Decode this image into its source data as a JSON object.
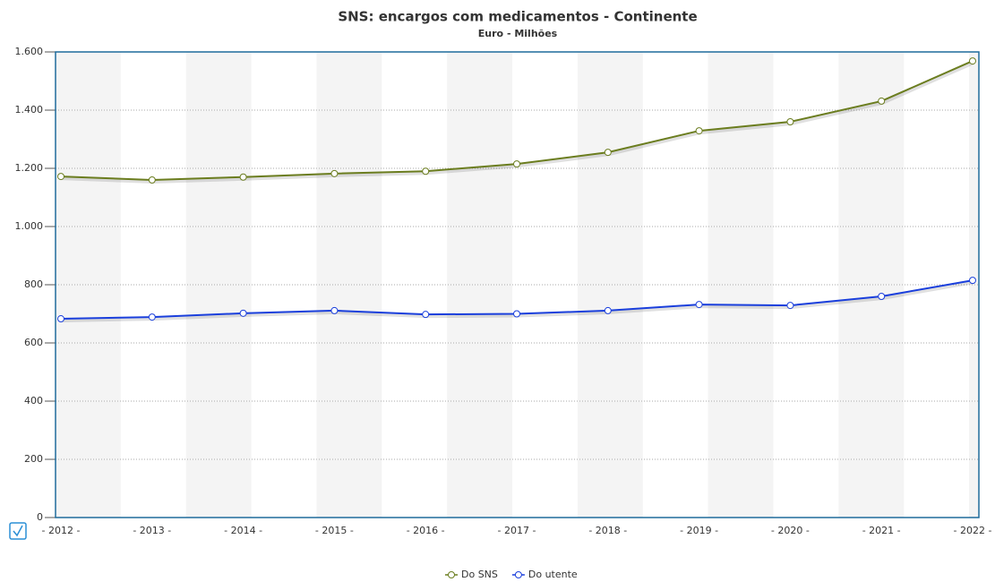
{
  "chart_data": {
    "type": "line",
    "title": "SNS: encargos com medicamentos - Continente",
    "subtitle": "Euro - Milhões",
    "categories": [
      "- 2012 -",
      "- 2013 -",
      "- 2014 -",
      "- 2015 -",
      "- 2016 -",
      "- 2017 -",
      "- 2018 -",
      "- 2019 -",
      "- 2020 -",
      "- 2021 -",
      "- 2022 -"
    ],
    "series": [
      {
        "name": "Do SNS",
        "color": "#6b7d1f",
        "values": [
          1172,
          1160,
          1170,
          1182,
          1190,
          1215,
          1255,
          1329,
          1360,
          1431,
          1569
        ]
      },
      {
        "name": "Do utente",
        "color": "#1a3fdc",
        "values": [
          683,
          689,
          702,
          711,
          698,
          700,
          711,
          732,
          729,
          760,
          815
        ]
      }
    ],
    "ylim": [
      0,
      1600
    ],
    "yticks": [
      0,
      200,
      400,
      600,
      800,
      {
        "value": 1000,
        "label": "1.000"
      },
      {
        "value": 1200,
        "label": "1.200"
      },
      {
        "value": 1400,
        "label": "1.400"
      },
      {
        "value": 1600,
        "label": "1.600"
      }
    ],
    "grid": true,
    "legend": "bottom"
  }
}
